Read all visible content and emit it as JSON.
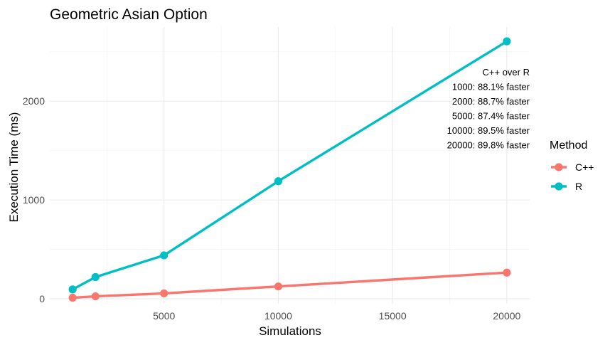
{
  "chart_data": {
    "type": "line",
    "title": "Geometric Asian Option",
    "xlabel": "Simulations",
    "ylabel": "Execution Time (ms)",
    "x": [
      1000,
      2000,
      5000,
      10000,
      20000
    ],
    "xlim": [
      0,
      21000
    ],
    "ylim": [
      -50,
      2750
    ],
    "xticks": [
      5000,
      10000,
      15000,
      20000
    ],
    "xtick_labels": [
      "5000",
      "10000",
      "15000",
      "20000"
    ],
    "yticks": [
      0,
      1000,
      2000
    ],
    "ytick_labels": [
      "0",
      "1000",
      "2000"
    ],
    "grid": true,
    "legend": {
      "title": "Method",
      "position": "right"
    },
    "series": [
      {
        "name": "C++",
        "color": "#F8766D",
        "values": [
          11,
          25,
          55,
          125,
          265
        ]
      },
      {
        "name": "R",
        "color": "#00BFC4",
        "values": [
          95,
          220,
          440,
          1190,
          2605
        ]
      }
    ],
    "annotations": [
      "C++ over R",
      "1000: 88.1% faster",
      "2000: 88.7% faster",
      "5000: 87.4% faster",
      "10000: 89.5% faster",
      "20000: 89.8% faster"
    ]
  }
}
